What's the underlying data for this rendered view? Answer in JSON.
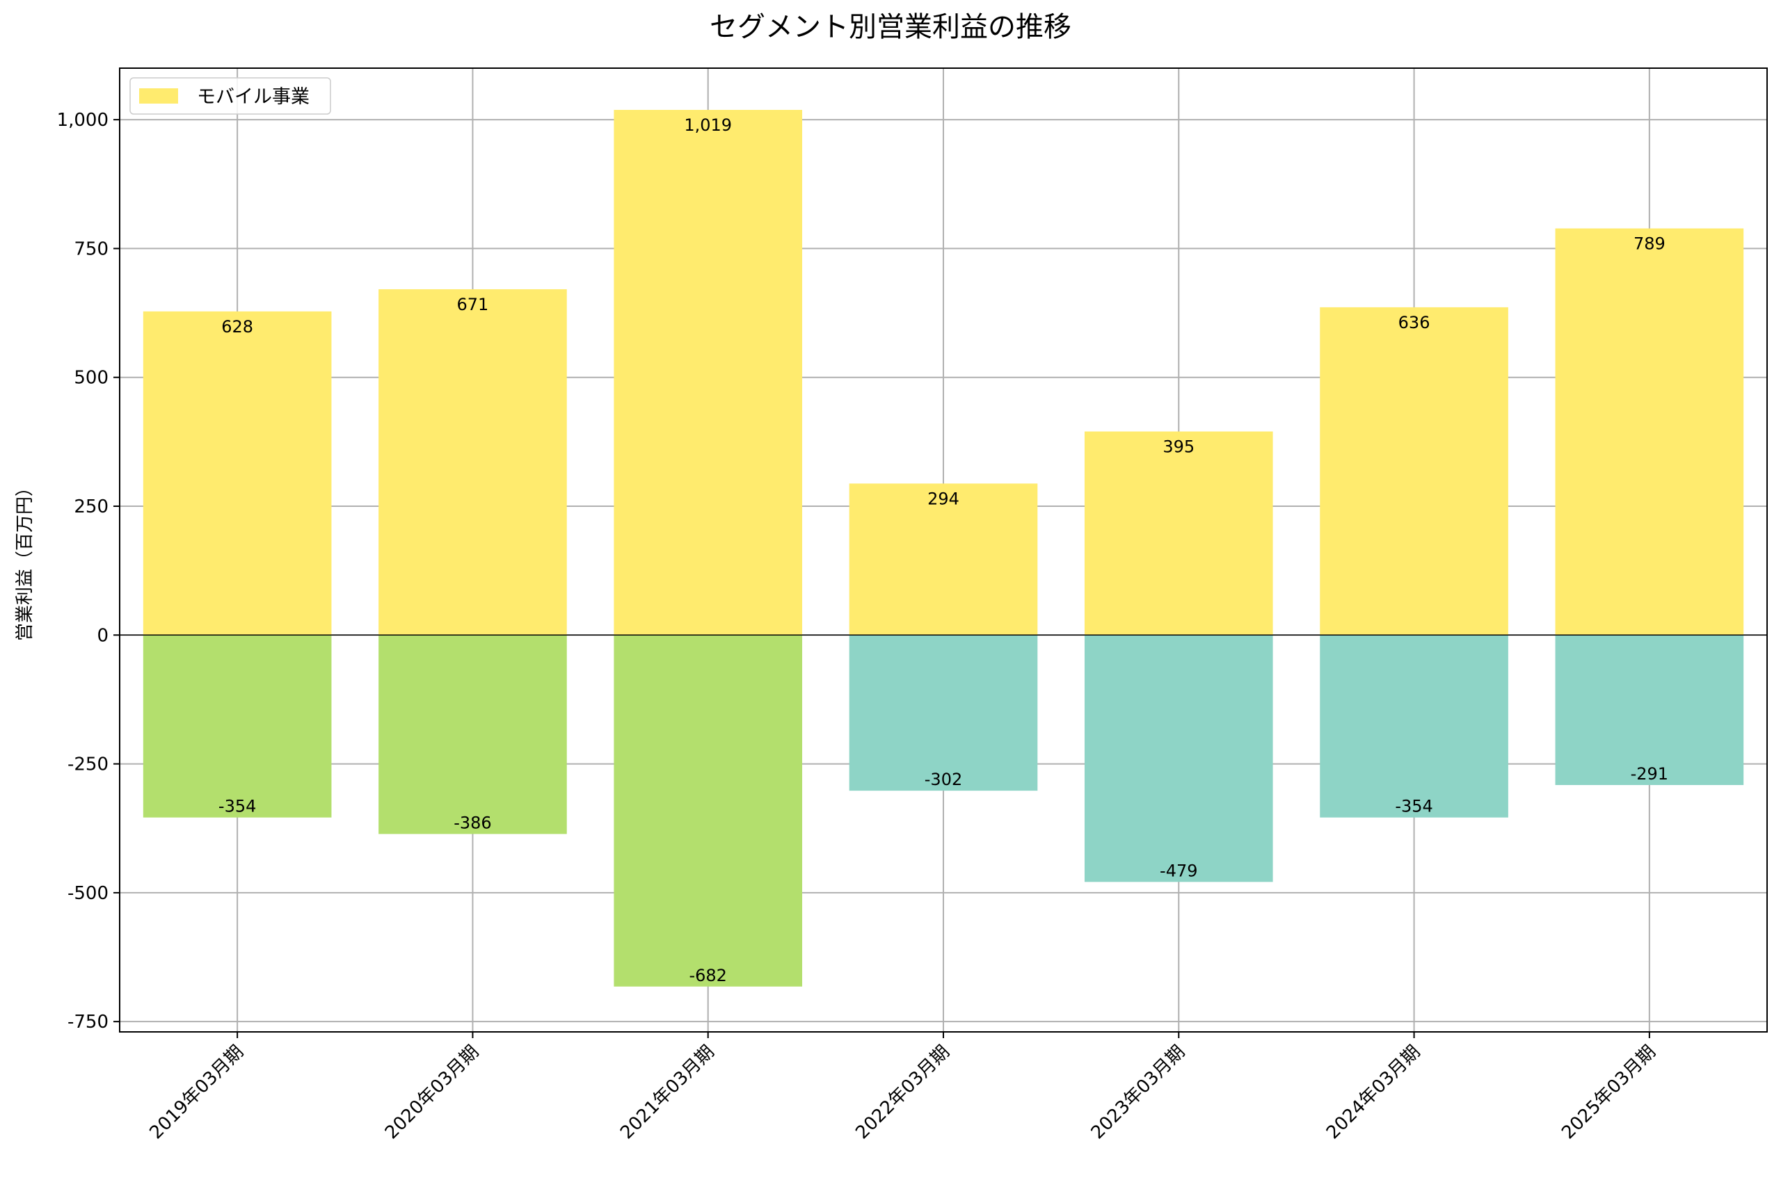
{
  "chart_data": {
    "type": "bar",
    "title": "セグメント別営業利益の推移",
    "xlabel": "",
    "ylabel": "営業利益（百万円）",
    "ylim": [
      -770,
      1100
    ],
    "yticks": [
      -750,
      -500,
      -250,
      0,
      250,
      500,
      750,
      1000
    ],
    "ytick_labels": [
      "-750",
      "-500",
      "-250",
      "0",
      "250",
      "500",
      "750",
      "1,000"
    ],
    "grid": true,
    "legend_position": "top-left",
    "categories": [
      "2019年03月期",
      "2020年03月期",
      "2021年03月期",
      "2022年03月期",
      "2023年03月期",
      "2024年03月期",
      "2025年03月期"
    ],
    "series": [
      {
        "name": "モバイル事業",
        "color": "#ffeb6e",
        "values": [
          628,
          671,
          1019,
          294,
          395,
          636,
          789
        ],
        "labels": [
          "628",
          "671",
          "1,019",
          "294",
          "395",
          "636",
          "789"
        ]
      },
      {
        "color": "#b3df6d",
        "values": [
          -354,
          -386,
          -682,
          null,
          null,
          null,
          null
        ],
        "labels": [
          "-354",
          "-386",
          "-682",
          "",
          "",
          "",
          ""
        ]
      },
      {
        "color": "#8ed4c6",
        "values": [
          null,
          null,
          null,
          -302,
          -479,
          -354,
          -291
        ],
        "labels": [
          "",
          "",
          "",
          "-302",
          "-479",
          "-354",
          "-291"
        ]
      }
    ]
  }
}
